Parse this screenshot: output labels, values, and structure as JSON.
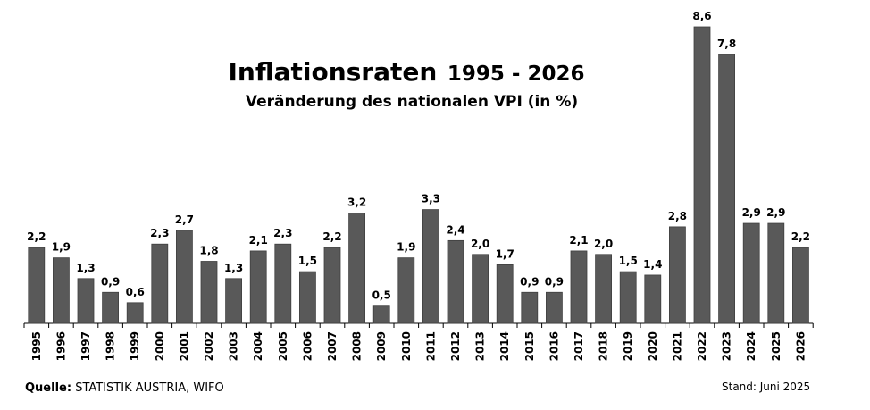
{
  "chart_data": {
    "type": "bar",
    "title_main": "Inflationsraten",
    "title_years": "1995 - 2026",
    "subtitle": "Veränderung des nationalen VPI (in %)",
    "categories": [
      "1995",
      "1996",
      "1997",
      "1998",
      "1999",
      "2000",
      "2001",
      "2002",
      "2003",
      "2004",
      "2005",
      "2006",
      "2007",
      "2008",
      "2009",
      "2010",
      "2011",
      "2012",
      "2013",
      "2014",
      "2015",
      "2016",
      "2017",
      "2018",
      "2019",
      "2020",
      "2021",
      "2022",
      "2023",
      "2024",
      "2025",
      "2026"
    ],
    "values": [
      2.2,
      1.9,
      1.3,
      0.9,
      0.6,
      2.3,
      2.7,
      1.8,
      1.3,
      2.1,
      2.3,
      1.5,
      2.2,
      3.2,
      0.5,
      1.9,
      3.3,
      2.4,
      2.0,
      1.7,
      0.9,
      0.9,
      2.1,
      2.0,
      1.5,
      1.4,
      2.8,
      8.6,
      7.8,
      2.9,
      2.9,
      2.2
    ],
    "labels": [
      "2,2",
      "1,9",
      "1,3",
      "0,9",
      "0,6",
      "2,3",
      "2,7",
      "1,8",
      "1,3",
      "2,1",
      "2,3",
      "1,5",
      "2,2",
      "3,2",
      "0,5",
      "1,9",
      "3,3",
      "2,4",
      "2,0",
      "1,7",
      "0,9",
      "0,9",
      "2,1",
      "2,0",
      "1,5",
      "1,4",
      "2,8",
      "8,6",
      "7,8",
      "2,9",
      "2,9",
      "2,2"
    ],
    "ylim": [
      0,
      8.6
    ],
    "grid": false,
    "bar_color": "#595959"
  },
  "footer": {
    "source_label": "Quelle:",
    "source_text": " STATISTIK AUSTRIA, WIFO",
    "stand": "Stand: Juni 2025"
  }
}
